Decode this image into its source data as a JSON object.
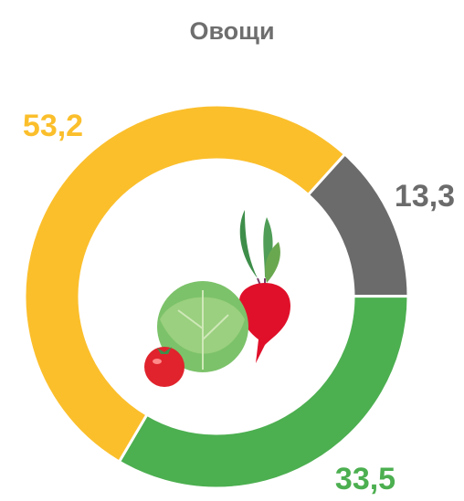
{
  "chart_data": {
    "type": "donut",
    "title": "Овощи",
    "values": [
      13.3,
      33.5,
      53.2
    ],
    "value_labels": [
      "13,3",
      "33,5",
      "53,2"
    ],
    "colors": [
      "#6b6b6b",
      "#4caf50",
      "#fbbf2c"
    ]
  }
}
